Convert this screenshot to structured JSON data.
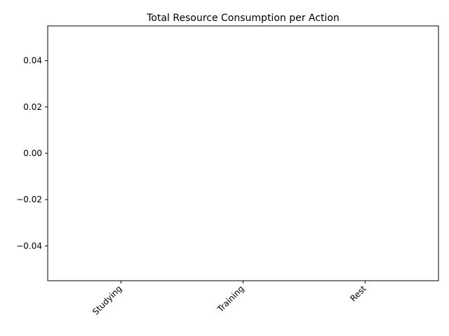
{
  "chart_data": {
    "type": "bar",
    "title": "Total Resource Consumption per Action",
    "xlabel": "",
    "ylabel": "",
    "categories": [
      "Studying",
      "Training",
      "Rest"
    ],
    "values": [
      0,
      0,
      0
    ],
    "ylim": [
      -0.055,
      0.055
    ],
    "yticks": [
      -0.04,
      -0.02,
      0.0,
      0.02,
      0.04
    ],
    "ytick_labels": [
      "−0.04",
      "−0.02",
      "0.00",
      "0.02",
      "0.04"
    ],
    "grid": false,
    "legend": "none",
    "bar_color": "#1f77b4"
  }
}
